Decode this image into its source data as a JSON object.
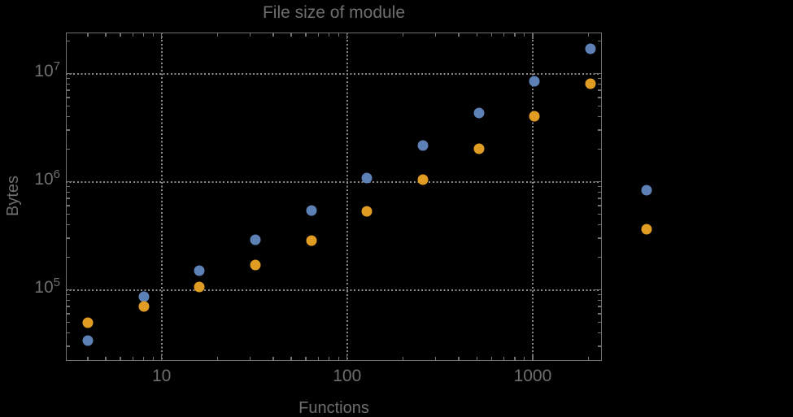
{
  "colors": {
    "background": "#000000",
    "text": "#6e6e6e",
    "frame": "#717171",
    "grid": "#8a8a8a",
    "series1": "#5e81b5",
    "series2": "#e19c24"
  },
  "chart_data": {
    "type": "scatter",
    "title": "File size of module",
    "xlabel": "Functions",
    "ylabel": "Bytes",
    "x_scale": "log",
    "y_scale": "log",
    "grid": true,
    "grid_style": "dotted",
    "legend": null,
    "x_range": [
      3.05,
      2360
    ],
    "y_range": [
      22000,
      24000000
    ],
    "x_ticks": [
      10,
      100,
      1000
    ],
    "x_tick_labels": [
      "10",
      "100",
      "1000"
    ],
    "y_ticks": [
      100000,
      1000000,
      10000000
    ],
    "y_tick_base": "10",
    "y_tick_exponents": [
      "5",
      "6",
      "7"
    ],
    "x": [
      4,
      8,
      16,
      32,
      64,
      128,
      256,
      512,
      1024,
      2048,
      4096
    ],
    "series": [
      {
        "name": "series-1-blue",
        "color": "#5e81b5",
        "values": [
          34000,
          86000,
          151000,
          289000,
          545000,
          1090000,
          2180000,
          4360000,
          8500000,
          16900000,
          841000
        ]
      },
      {
        "name": "series-2-orange",
        "color": "#e19c24",
        "values": [
          50000,
          70000,
          106000,
          170000,
          286000,
          530000,
          1040000,
          2020000,
          4000000,
          8090000,
          362000
        ]
      }
    ]
  }
}
